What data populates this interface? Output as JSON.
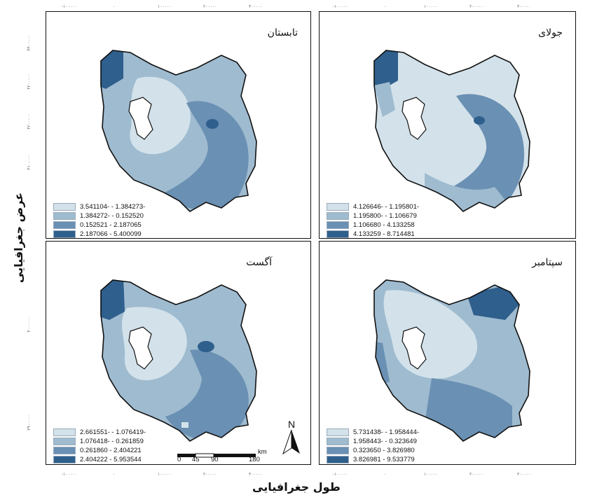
{
  "axes": {
    "x_title": "طول جغرافیایی",
    "y_title": "عرض جغرافیایی",
    "x_ticks_top": [
      "-۱۰۰۰۰۰",
      "۰",
      "۱۰۰۰۰۰",
      "۲۰۰۰۰۰",
      "۳۰۰۰۰۰"
    ],
    "x_ticks_bottom": [
      "-۱۰۰۰۰۰",
      "۰",
      "۱۰۰۰۰۰",
      "۲۰۰۰۰۰",
      "۳۰۰۰۰۰"
    ],
    "y_ticks": [
      "۴۴۰۰۰۰۰",
      "۴۲۰۰۰۰۰",
      "۴۲۰۰۰۰۰",
      "۴۱۰۰۰۰۰",
      "۴۰۰۰۰۰۰",
      "۳۹۰۰۰۰۰"
    ]
  },
  "colors": {
    "class1": "#d3e2ea",
    "class2": "#9fbbd0",
    "class3": "#6a90b3",
    "class4": "#2f5f8c",
    "lake": "#ffffff"
  },
  "panels": [
    {
      "title": "تابستان",
      "legend": [
        "3.541104- - 1.384273-",
        "1.384272- - 0.152520",
        "0.152521 - 2.187065",
        "2.187066 - 5.400099"
      ]
    },
    {
      "title": "جولای",
      "legend": [
        "4.126646- - 1.195801-",
        "1.195800- - 1.106679",
        "1.106680 - 4.133258",
        "4.133259 - 8.714481"
      ]
    },
    {
      "title": "آگست",
      "legend": [
        "2.661551- - 1.076419-",
        "1.076418- - 0.261859",
        "0.261860 - 2.404221",
        "2.404222 - 5.953544"
      ]
    },
    {
      "title": "سپتامبر",
      "legend": [
        "5.731438- - 1.958444-",
        "1.958443- - 0.323649",
        "0.323650 - 3.826980",
        "3.826981 - 9.533779"
      ]
    }
  ],
  "scale_bar": {
    "labels": [
      "0",
      "45",
      "90",
      "180"
    ],
    "unit": "km"
  },
  "north_arrow": {
    "label": "N",
    "icon": "north-arrow-icon"
  }
}
